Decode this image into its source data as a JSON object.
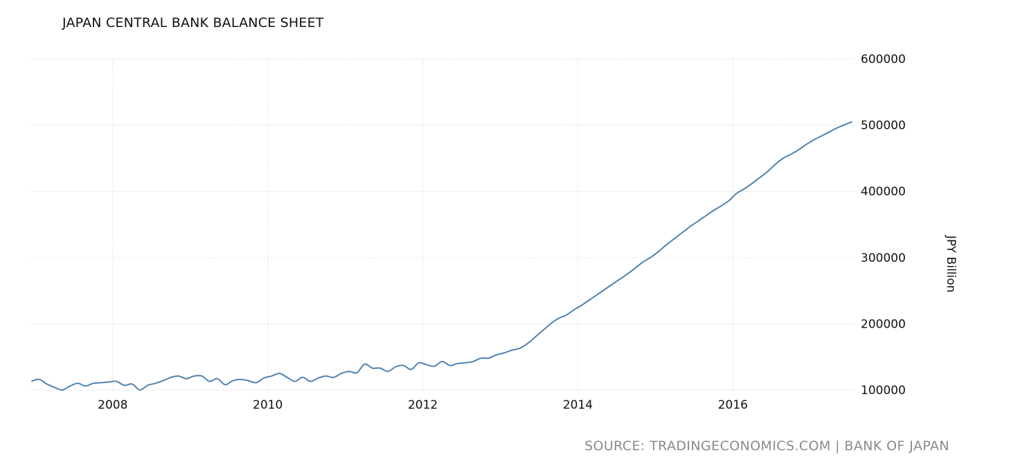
{
  "chart_data": {
    "type": "line",
    "title": "JAPAN CENTRAL BANK BALANCE SHEET",
    "ylabel": "JPY Billion",
    "xlabel": "",
    "source": "SOURCE: TRADINGECONOMICS.COM | BANK OF JAPAN",
    "x_ticks": [
      "2008",
      "2010",
      "2012",
      "2014",
      "2016"
    ],
    "y_ticks": [
      "100000",
      "200000",
      "300000",
      "400000",
      "500000",
      "600000"
    ],
    "xlim": [
      2006.93,
      2017.56
    ],
    "ylim": [
      100000,
      600000
    ],
    "grid": true,
    "line_color": "#4f81b0",
    "series": [
      {
        "x": [
          2006.95,
          2007.05,
          2007.15,
          2007.25,
          2007.35,
          2007.45,
          2007.55,
          2007.65,
          2007.75,
          2007.85,
          2007.95,
          2008.05,
          2008.15,
          2008.25,
          2008.35,
          2008.45,
          2008.55,
          2008.65,
          2008.75,
          2008.85,
          2008.95,
          2009.05,
          2009.15,
          2009.25,
          2009.35,
          2009.45,
          2009.55,
          2009.65,
          2009.75,
          2009.85,
          2009.95,
          2010.05,
          2010.15,
          2010.25,
          2010.35,
          2010.45,
          2010.55,
          2010.65,
          2010.75,
          2010.85,
          2010.95,
          2011.05,
          2011.15,
          2011.25,
          2011.35,
          2011.45,
          2011.55,
          2011.65,
          2011.75,
          2011.85,
          2011.95,
          2012.05,
          2012.15,
          2012.25,
          2012.35,
          2012.45,
          2012.55,
          2012.65,
          2012.75,
          2012.85,
          2012.95,
          2013.05,
          2013.15,
          2013.25,
          2013.35,
          2013.45,
          2013.55,
          2013.65,
          2013.75,
          2013.85,
          2013.95,
          2014.05,
          2014.15,
          2014.25,
          2014.35,
          2014.45,
          2014.55,
          2014.65,
          2014.75,
          2014.85,
          2014.95,
          2015.05,
          2015.15,
          2015.25,
          2015.35,
          2015.45,
          2015.55,
          2015.65,
          2015.75,
          2015.85,
          2015.95,
          2016.05,
          2016.15,
          2016.25,
          2016.35,
          2016.45,
          2016.55,
          2016.65,
          2016.75,
          2016.85,
          2016.95,
          2017.05,
          2017.15,
          2017.25,
          2017.35,
          2017.45,
          2017.54
        ],
        "values": [
          113000,
          116000,
          109000,
          104000,
          100000,
          106000,
          110000,
          106000,
          110000,
          111000,
          112000,
          113000,
          107000,
          109000,
          100000,
          107000,
          110000,
          114000,
          119000,
          121000,
          117000,
          121000,
          121000,
          113000,
          117000,
          108000,
          114000,
          116000,
          114000,
          111000,
          118000,
          121000,
          125000,
          119000,
          113000,
          119000,
          113000,
          118000,
          121000,
          119000,
          125000,
          128000,
          126000,
          139000,
          133000,
          133000,
          128000,
          135000,
          137000,
          131000,
          141000,
          138000,
          136000,
          143000,
          137000,
          140000,
          141000,
          143000,
          148000,
          148000,
          153000,
          156000,
          160000,
          163000,
          170000,
          180000,
          190000,
          200000,
          208000,
          213000,
          221000,
          228000,
          236000,
          244000,
          252000,
          260000,
          268000,
          276000,
          285000,
          294000,
          301000,
          310000,
          320000,
          329000,
          338000,
          347000,
          355000,
          363000,
          371000,
          378000,
          386000,
          397000,
          404000,
          412000,
          421000,
          430000,
          441000,
          450000,
          456000,
          463000,
          471000,
          478000,
          484000,
          490000,
          496000,
          501000,
          505000
        ]
      }
    ]
  }
}
